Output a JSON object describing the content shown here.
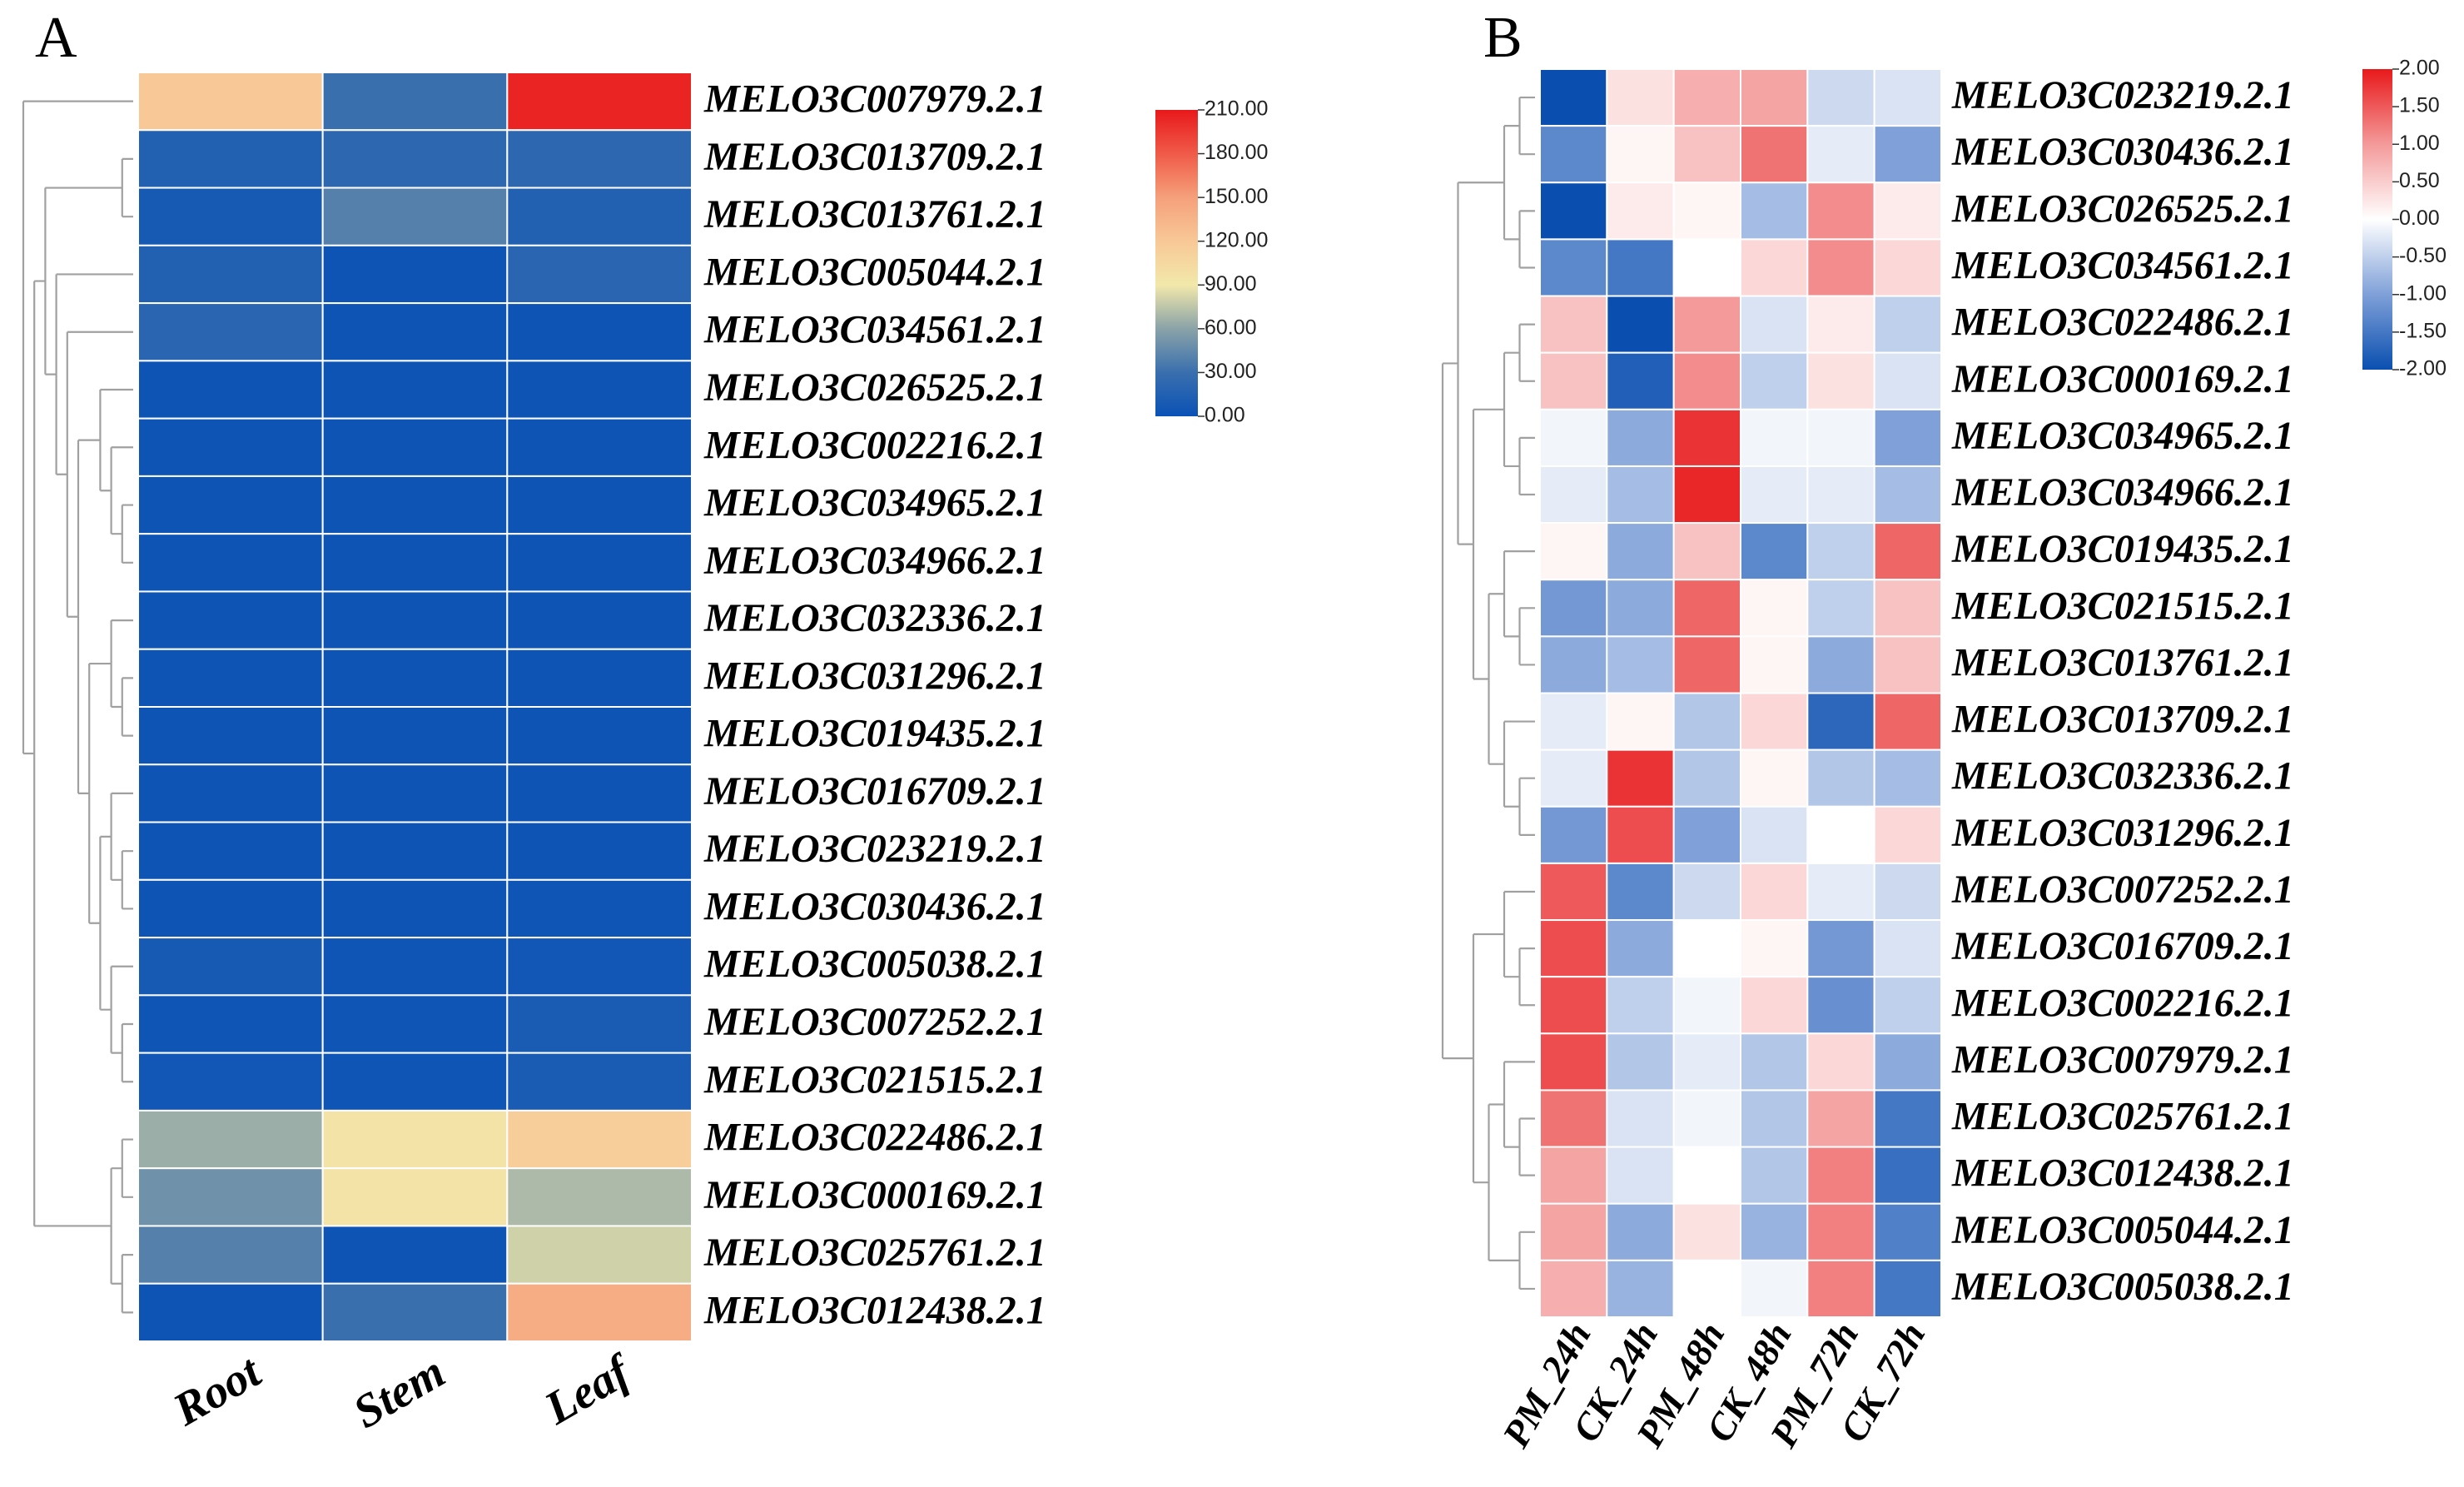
{
  "chart_data": [
    {
      "type": "heatmap",
      "panel": "A",
      "categories": [
        "Root",
        "Stem",
        "Leaf"
      ],
      "rows": [
        "MELO3C007979.2.1",
        "MELO3C013709.2.1",
        "MELO3C013761.2.1",
        "MELO3C005044.2.1",
        "MELO3C034561.2.1",
        "MELO3C026525.2.1",
        "MELO3C002216.2.1",
        "MELO3C034965.2.1",
        "MELO3C034966.2.1",
        "MELO3C032336.2.1",
        "MELO3C031296.2.1",
        "MELO3C019435.2.1",
        "MELO3C016709.2.1",
        "MELO3C023219.2.1",
        "MELO3C030436.2.1",
        "MELO3C005038.2.1",
        "MELO3C007252.2.1",
        "MELO3C021515.2.1",
        "MELO3C022486.2.1",
        "MELO3C000169.2.1",
        "MELO3C025761.2.1",
        "MELO3C012438.2.1"
      ],
      "values": [
        [
          120,
          30,
          205
        ],
        [
          15,
          22,
          22
        ],
        [
          8,
          40,
          15
        ],
        [
          15,
          2,
          20
        ],
        [
          20,
          2,
          2
        ],
        [
          2,
          2,
          2
        ],
        [
          2,
          2,
          2
        ],
        [
          2,
          2,
          2
        ],
        [
          2,
          2,
          2
        ],
        [
          2,
          2,
          2
        ],
        [
          2,
          2,
          2
        ],
        [
          2,
          2,
          2
        ],
        [
          2,
          2,
          2
        ],
        [
          2,
          2,
          2
        ],
        [
          2,
          2,
          3
        ],
        [
          8,
          3,
          5
        ],
        [
          3,
          3,
          10
        ],
        [
          5,
          3,
          10
        ],
        [
          65,
          95,
          115
        ],
        [
          50,
          95,
          70
        ],
        [
          40,
          2,
          80
        ],
        [
          2,
          30,
          140
        ]
      ],
      "zlim": [
        0,
        210
      ],
      "zticks": [
        {
          "value": 210,
          "label": "210.00"
        },
        {
          "value": 180,
          "label": "180.00"
        },
        {
          "value": 150,
          "label": "150.00"
        },
        {
          "value": 120,
          "label": "120.00"
        },
        {
          "value": 90,
          "label": "90.00"
        },
        {
          "value": 60,
          "label": "60.00"
        },
        {
          "value": 30,
          "label": "30.00"
        },
        {
          "value": 0,
          "label": "0.00"
        }
      ],
      "colorscale": [
        [
          0,
          "#0a52b6"
        ],
        [
          30,
          "#3a6fae"
        ],
        [
          60,
          "#8aa3a8"
        ],
        [
          90,
          "#f2e8aa"
        ],
        [
          120,
          "#f8c896"
        ],
        [
          150,
          "#f5a07a"
        ],
        [
          180,
          "#f05a48"
        ],
        [
          210,
          "#e8191b"
        ]
      ]
    },
    {
      "type": "heatmap",
      "panel": "B",
      "categories": [
        "PM_24h",
        "CK_24h",
        "PM_48h",
        "CK_48h",
        "PM_72h",
        "CK_72h"
      ],
      "rows": [
        "MELO3C023219.2.1",
        "MELO3C030436.2.1",
        "MELO3C026525.2.1",
        "MELO3C034561.2.1",
        "MELO3C022486.2.1",
        "MELO3C000169.2.1",
        "MELO3C034965.2.1",
        "MELO3C034966.2.1",
        "MELO3C019435.2.1",
        "MELO3C021515.2.1",
        "MELO3C013761.2.1",
        "MELO3C013709.2.1",
        "MELO3C032336.2.1",
        "MELO3C031296.2.1",
        "MELO3C007252.2.1",
        "MELO3C016709.2.1",
        "MELO3C002216.2.1",
        "MELO3C007979.2.1",
        "MELO3C025761.2.1",
        "MELO3C012438.2.1",
        "MELO3C005044.2.1",
        "MELO3C005038.2.1"
      ],
      "values": [
        [
          -2.0,
          0.3,
          0.8,
          0.9,
          -0.4,
          -0.3
        ],
        [
          -1.3,
          0.1,
          0.6,
          1.3,
          -0.2,
          -1.0
        ],
        [
          -2.0,
          0.2,
          0.1,
          -0.7,
          1.1,
          0.2
        ],
        [
          -1.3,
          -1.5,
          0.0,
          0.4,
          1.1,
          0.4
        ],
        [
          0.6,
          -2.0,
          1.0,
          -0.3,
          0.2,
          -0.5
        ],
        [
          0.6,
          -1.8,
          1.1,
          -0.5,
          0.3,
          -0.3
        ],
        [
          -0.1,
          -0.9,
          1.8,
          -0.1,
          -0.1,
          -1.0
        ],
        [
          -0.2,
          -0.7,
          1.9,
          -0.2,
          -0.2,
          -0.7
        ],
        [
          0.1,
          -0.9,
          0.6,
          -1.3,
          -0.5,
          1.4
        ],
        [
          -1.1,
          -0.9,
          1.4,
          0.1,
          -0.5,
          0.6
        ],
        [
          -0.9,
          -0.7,
          1.4,
          0.1,
          -0.9,
          0.6
        ],
        [
          -0.2,
          0.1,
          -0.6,
          0.4,
          -1.7,
          1.4
        ],
        [
          -0.2,
          1.8,
          -0.6,
          0.1,
          -0.6,
          -0.7
        ],
        [
          -1.1,
          1.6,
          -1.0,
          -0.3,
          0.0,
          0.4
        ],
        [
          1.5,
          -1.3,
          -0.4,
          0.4,
          -0.2,
          -0.4
        ],
        [
          1.6,
          -0.9,
          0.0,
          0.1,
          -1.1,
          -0.3
        ],
        [
          1.6,
          -0.5,
          -0.1,
          0.4,
          -1.2,
          -0.5
        ],
        [
          1.6,
          -0.6,
          -0.2,
          -0.6,
          0.4,
          -0.9
        ],
        [
          1.3,
          -0.3,
          -0.1,
          -0.6,
          0.9,
          -1.5
        ],
        [
          0.9,
          -0.3,
          0.0,
          -0.6,
          1.2,
          -1.6
        ],
        [
          0.9,
          -0.9,
          0.3,
          -0.8,
          1.2,
          -1.4
        ],
        [
          0.8,
          -0.8,
          0.0,
          -0.1,
          1.2,
          -1.5
        ]
      ],
      "zlim": [
        -2,
        2
      ],
      "zticks": [
        {
          "value": 2,
          "label": "2.00"
        },
        {
          "value": 1.5,
          "label": "1.50"
        },
        {
          "value": 1,
          "label": "1.00"
        },
        {
          "value": 0.5,
          "label": "0.50"
        },
        {
          "value": 0,
          "label": "0.00"
        },
        {
          "value": -0.5,
          "label": "-0.50"
        },
        {
          "value": -1,
          "label": "-1.00"
        },
        {
          "value": -1.5,
          "label": "-1.50"
        },
        {
          "value": -2,
          "label": "-2.00"
        }
      ],
      "colorscale": [
        [
          -2,
          "#0a4fb0"
        ],
        [
          -1,
          "#7fa0d8"
        ],
        [
          0,
          "#ffffff"
        ],
        [
          1,
          "#f49a9a"
        ],
        [
          2,
          "#e8191b"
        ]
      ]
    }
  ]
}
